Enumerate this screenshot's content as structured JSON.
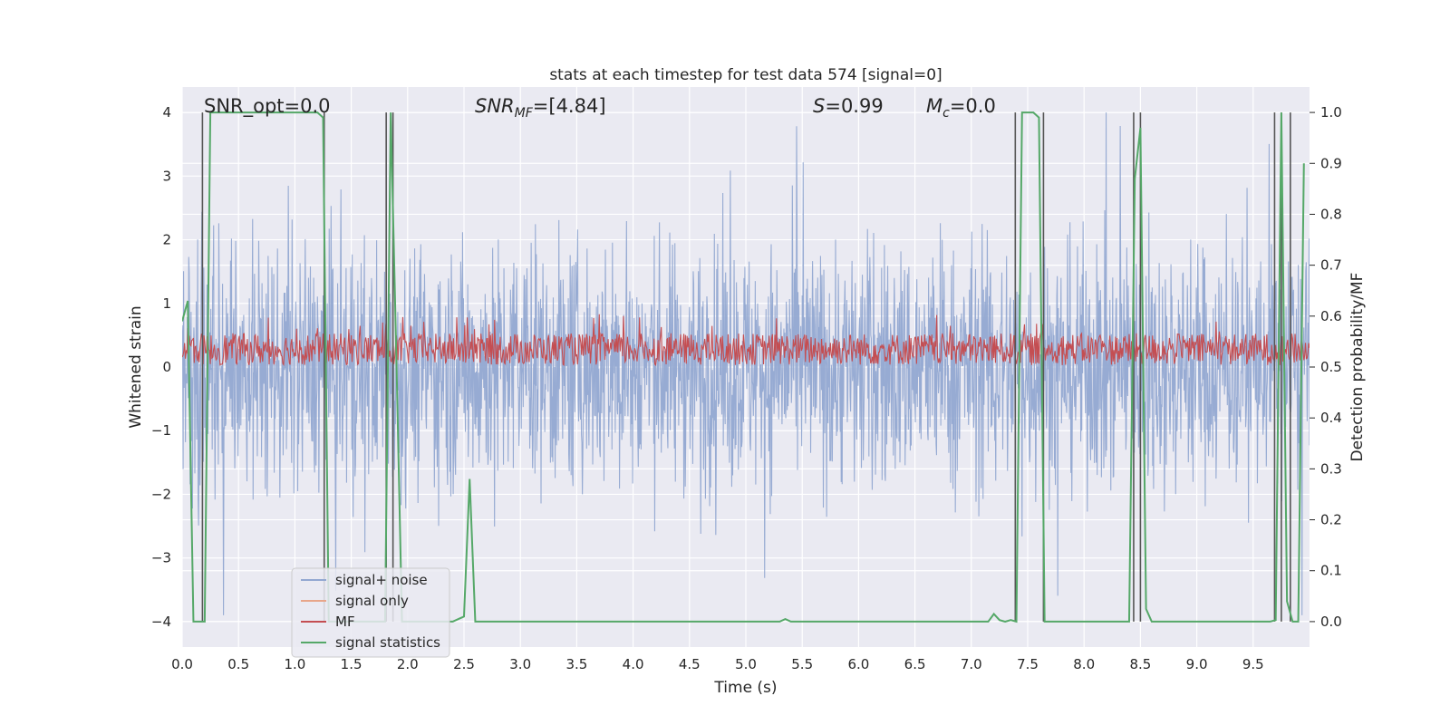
{
  "chart_data": {
    "type": "line",
    "title": "stats at each timestep for test data 574 [signal=0]",
    "xlabel": "Time (s)",
    "ylabel": "Whitened strain",
    "ylabel_right": "Detection probability/MF",
    "xlim": [
      0,
      10
    ],
    "ylim": [
      -4.4,
      4.4
    ],
    "ylim_right": [
      -0.05,
      1.05
    ],
    "x_ticks": [
      "0.0",
      "0.5",
      "1.0",
      "1.5",
      "2.0",
      "2.5",
      "3.0",
      "3.5",
      "4.0",
      "4.5",
      "5.0",
      "5.5",
      "6.0",
      "6.5",
      "7.0",
      "7.5",
      "8.0",
      "8.5",
      "9.0",
      "9.5"
    ],
    "y_ticks": [
      "−4",
      "−3",
      "−2",
      "−1",
      "0",
      "1",
      "2",
      "3",
      "4"
    ],
    "y_ticks_right": [
      "0.0",
      "0.1",
      "0.2",
      "0.3",
      "0.4",
      "0.5",
      "0.6",
      "0.7",
      "0.8",
      "0.9",
      "1.0"
    ],
    "grid": true,
    "legend_position": "lower-left",
    "annotations": {
      "snr_opt": "SNR_opt=0.0",
      "snr_mf_main": "SNR",
      "snr_mf_sub": "MF",
      "snr_mf_value": "=[4.84]",
      "s_main": "S",
      "s_value": "=0.99",
      "mc_main": "M",
      "mc_sub": "c",
      "mc_value": "=0.0"
    },
    "series": [
      {
        "name": "signal+ noise",
        "color": "#92a8d1",
        "axis": "left",
        "style": "noise",
        "amplitude_range": [
          -3.9,
          4.0
        ]
      },
      {
        "name": "signal only",
        "color": "#e8a68a",
        "axis": "left",
        "values": []
      },
      {
        "name": "MF",
        "color": "#c44e52",
        "axis": "left",
        "style": "noise",
        "amplitude_range": [
          0.0,
          0.9
        ]
      },
      {
        "name": "signal statistics",
        "color": "#55a868",
        "axis": "right",
        "x": [
          0.0,
          0.05,
          0.1,
          0.15,
          0.2,
          0.25,
          0.3,
          0.5,
          1.0,
          1.2,
          1.25,
          1.3,
          1.4,
          1.5,
          1.8,
          1.85,
          1.9,
          1.95,
          2.0,
          2.3,
          2.4,
          2.5,
          2.55,
          2.6,
          2.7,
          3.0,
          4.0,
          5.0,
          5.3,
          5.35,
          5.4,
          6.0,
          7.0,
          7.15,
          7.2,
          7.25,
          7.3,
          7.35,
          7.4,
          7.45,
          7.5,
          7.55,
          7.6,
          7.65,
          7.7,
          8.0,
          8.4,
          8.45,
          8.5,
          8.55,
          8.6,
          9.0,
          9.5,
          9.65,
          9.7,
          9.75,
          9.8,
          9.85,
          9.9,
          9.95
        ],
        "y": [
          0.59,
          0.63,
          0.0,
          0.0,
          0.0,
          1.0,
          1.0,
          1.0,
          1.0,
          1.0,
          0.99,
          0.0,
          0.0,
          0.0,
          0.0,
          1.0,
          0.52,
          0.0,
          0.0,
          0.0,
          0.0,
          0.01,
          0.28,
          0.0,
          0.0,
          0.0,
          0.0,
          0.0,
          0.0,
          0.005,
          0.0,
          0.0,
          0.0,
          0.0,
          0.015,
          0.003,
          0.0,
          0.003,
          0.0,
          1.0,
          1.0,
          1.0,
          0.99,
          0.0,
          0.0,
          0.0,
          0.0,
          0.87,
          0.97,
          0.025,
          0.0,
          0.0,
          0.0,
          0.0,
          0.003,
          1.0,
          0.04,
          0.0,
          0.0,
          0.9
        ]
      }
    ],
    "vertical_lines_x": [
      0.18,
      1.26,
      1.81,
      1.87,
      7.39,
      7.64,
      8.44,
      8.5,
      9.69,
      9.75,
      9.83
    ]
  }
}
